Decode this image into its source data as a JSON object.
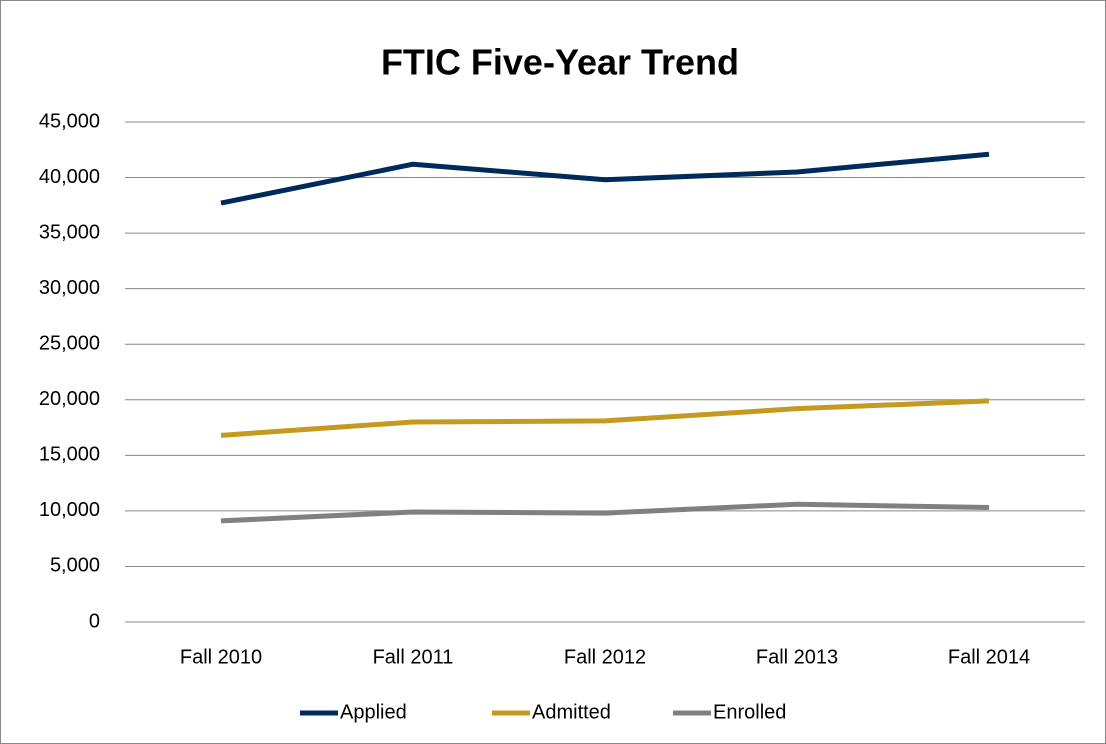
{
  "chart_data": {
    "type": "line",
    "title": "FTIC Five-Year Trend",
    "categories": [
      "Fall 2010",
      "Fall 2011",
      "Fall 2012",
      "Fall 2013",
      "Fall 2014"
    ],
    "series": [
      {
        "name": "Applied",
        "color": "#002a5c",
        "values": [
          37700,
          41200,
          39800,
          40500,
          42100
        ]
      },
      {
        "name": "Admitted",
        "color": "#c59a1e",
        "values": [
          16800,
          18000,
          18100,
          19200,
          19900
        ]
      },
      {
        "name": "Enrolled",
        "color": "#808080",
        "values": [
          9100,
          9900,
          9800,
          10600,
          10300
        ]
      }
    ],
    "ylim": [
      0,
      45000
    ],
    "yticks": [
      0,
      {
        "value": 5000,
        "label": "5,000"
      },
      {
        "value": 10000,
        "label": "10,000"
      },
      {
        "value": 15000,
        "label": "15,000"
      },
      {
        "value": 20000,
        "label": "20,000"
      },
      {
        "value": 25000,
        "label": "25,000"
      },
      {
        "value": 30000,
        "label": "30,000"
      },
      {
        "value": 35000,
        "label": "35,000"
      },
      {
        "value": 40000,
        "label": "40,000"
      },
      {
        "value": 45000,
        "label": "45,000"
      }
    ],
    "grid": true,
    "legend": "bottom"
  }
}
